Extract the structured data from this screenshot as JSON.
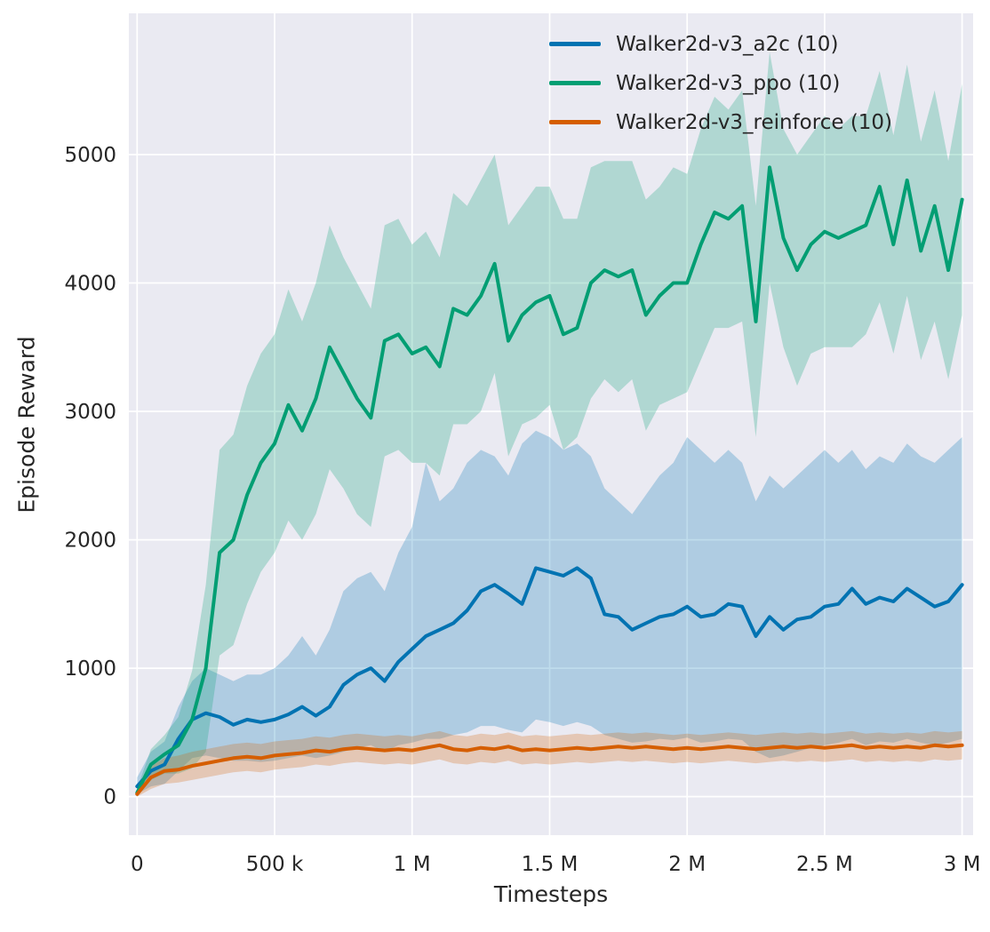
{
  "chart_data": {
    "type": "line",
    "title": "",
    "xlabel": "Timesteps",
    "ylabel": "Episode Reward",
    "x_unit": "timesteps_thousands",
    "grid": true,
    "legend_position": "upper right inside",
    "plot_bg": "#eaeaf2",
    "grid_color": "#ffffff",
    "text_color": "#262626",
    "band_opacity": 0.25,
    "xlim": [
      -30,
      3040
    ],
    "ylim": [
      -300,
      6100
    ],
    "xticks": [
      {
        "v": 0,
        "label": "0"
      },
      {
        "v": 500,
        "label": "500 k"
      },
      {
        "v": 1000,
        "label": "1 M"
      },
      {
        "v": 1500,
        "label": "1.5 M"
      },
      {
        "v": 2000,
        "label": "2 M"
      },
      {
        "v": 2500,
        "label": "2.5 M"
      },
      {
        "v": 3000,
        "label": "3 M"
      }
    ],
    "yticks": [
      {
        "v": 0,
        "label": "0"
      },
      {
        "v": 1000,
        "label": "1000"
      },
      {
        "v": 2000,
        "label": "2000"
      },
      {
        "v": 3000,
        "label": "3000"
      },
      {
        "v": 4000,
        "label": "4000"
      },
      {
        "v": 5000,
        "label": "5000"
      }
    ],
    "x": [
      0,
      50,
      100,
      150,
      200,
      250,
      300,
      350,
      400,
      450,
      500,
      550,
      600,
      650,
      700,
      750,
      800,
      850,
      900,
      950,
      1000,
      1050,
      1100,
      1150,
      1200,
      1250,
      1300,
      1350,
      1400,
      1450,
      1500,
      1550,
      1600,
      1650,
      1700,
      1750,
      1800,
      1850,
      1900,
      1950,
      2000,
      2050,
      2100,
      2150,
      2200,
      2250,
      2300,
      2350,
      2400,
      2450,
      2500,
      2550,
      2600,
      2650,
      2700,
      2750,
      2800,
      2850,
      2900,
      2950,
      3000
    ],
    "series": [
      {
        "name": "Walker2d-v3_a2c (10)",
        "color": "#0173b2",
        "mean": [
          80,
          200,
          250,
          450,
          600,
          650,
          620,
          560,
          600,
          580,
          600,
          640,
          700,
          630,
          700,
          870,
          950,
          1000,
          900,
          1050,
          1150,
          1250,
          1300,
          1350,
          1450,
          1600,
          1650,
          1580,
          1500,
          1780,
          1750,
          1720,
          1780,
          1700,
          1420,
          1400,
          1300,
          1350,
          1400,
          1420,
          1480,
          1400,
          1420,
          1500,
          1480,
          1250,
          1400,
          1300,
          1380,
          1400,
          1480,
          1500,
          1620,
          1500,
          1550,
          1520,
          1620,
          1550,
          1480,
          1520,
          1650
        ],
        "band_lower": [
          20,
          80,
          100,
          200,
          300,
          320,
          300,
          280,
          280,
          270,
          280,
          300,
          320,
          300,
          320,
          350,
          380,
          400,
          350,
          400,
          420,
          450,
          450,
          480,
          500,
          550,
          550,
          520,
          500,
          600,
          580,
          550,
          580,
          550,
          480,
          450,
          420,
          430,
          450,
          440,
          460,
          420,
          430,
          450,
          440,
          350,
          300,
          320,
          350,
          380,
          400,
          420,
          450,
          400,
          430,
          420,
          450,
          420,
          400,
          420,
          450
        ],
        "band_upper": [
          150,
          350,
          430,
          700,
          900,
          1000,
          950,
          900,
          950,
          950,
          1000,
          1100,
          1250,
          1100,
          1300,
          1600,
          1700,
          1750,
          1600,
          1900,
          2100,
          2600,
          2300,
          2400,
          2600,
          2700,
          2650,
          2500,
          2750,
          2850,
          2800,
          2700,
          2750,
          2650,
          2400,
          2300,
          2200,
          2350,
          2500,
          2600,
          2800,
          2700,
          2600,
          2700,
          2600,
          2300,
          2500,
          2400,
          2500,
          2600,
          2700,
          2600,
          2700,
          2550,
          2650,
          2600,
          2750,
          2650,
          2600,
          2700,
          2800
        ]
      },
      {
        "name": "Walker2d-v3_ppo (10)",
        "color": "#029e73",
        "mean": [
          30,
          250,
          330,
          400,
          600,
          1000,
          1900,
          2000,
          2350,
          2600,
          2750,
          3050,
          2850,
          3100,
          3500,
          3300,
          3100,
          2950,
          3550,
          3600,
          3450,
          3500,
          3350,
          3800,
          3750,
          3900,
          4150,
          3550,
          3750,
          3850,
          3900,
          3600,
          3650,
          4000,
          4100,
          4050,
          4100,
          3750,
          3900,
          4000,
          4000,
          4300,
          4550,
          4500,
          4600,
          3700,
          4900,
          4350,
          4100,
          4300,
          4400,
          4350,
          4400,
          4450,
          4750,
          4300,
          4800,
          4250,
          4600,
          4100,
          4650
        ],
        "band_lower": [
          0,
          130,
          180,
          180,
          220,
          350,
          1100,
          1180,
          1500,
          1750,
          1900,
          2150,
          2000,
          2200,
          2550,
          2400,
          2200,
          2100,
          2650,
          2700,
          2600,
          2600,
          2500,
          2900,
          2900,
          3000,
          3300,
          2650,
          2900,
          2950,
          3050,
          2700,
          2800,
          3100,
          3250,
          3150,
          3250,
          2850,
          3050,
          3100,
          3150,
          3400,
          3650,
          3650,
          3700,
          2800,
          4000,
          3500,
          3200,
          3450,
          3500,
          3500,
          3500,
          3600,
          3850,
          3450,
          3900,
          3400,
          3700,
          3250,
          3750
        ],
        "band_upper": [
          60,
          370,
          480,
          620,
          980,
          1650,
          2700,
          2820,
          3200,
          3450,
          3600,
          3950,
          3700,
          4000,
          4450,
          4200,
          4000,
          3800,
          4450,
          4500,
          4300,
          4400,
          4200,
          4700,
          4600,
          4800,
          5000,
          4450,
          4600,
          4750,
          4750,
          4500,
          4500,
          4900,
          4950,
          4950,
          4950,
          4650,
          4750,
          4900,
          4850,
          5200,
          5450,
          5350,
          5500,
          4600,
          5800,
          5200,
          5000,
          5150,
          5300,
          5200,
          5300,
          5300,
          5650,
          5150,
          5700,
          5100,
          5500,
          4950,
          5550
        ]
      },
      {
        "name": "Walker2d-v3_reinforce (10)",
        "color": "#d55e00",
        "mean": [
          20,
          150,
          200,
          210,
          240,
          260,
          280,
          300,
          310,
          300,
          320,
          330,
          340,
          360,
          350,
          370,
          380,
          370,
          360,
          370,
          360,
          380,
          400,
          370,
          360,
          380,
          370,
          390,
          360,
          370,
          360,
          370,
          380,
          370,
          380,
          390,
          380,
          390,
          380,
          370,
          380,
          370,
          380,
          390,
          380,
          370,
          380,
          390,
          380,
          390,
          380,
          390,
          400,
          380,
          390,
          380,
          390,
          380,
          400,
          390,
          400
        ],
        "band_lower": [
          0,
          60,
          100,
          110,
          130,
          150,
          170,
          190,
          200,
          190,
          210,
          220,
          230,
          250,
          240,
          260,
          270,
          260,
          250,
          260,
          250,
          270,
          290,
          260,
          250,
          270,
          260,
          280,
          250,
          260,
          250,
          260,
          270,
          260,
          270,
          280,
          270,
          280,
          270,
          260,
          270,
          260,
          270,
          280,
          270,
          260,
          270,
          280,
          270,
          280,
          270,
          280,
          290,
          270,
          280,
          270,
          280,
          270,
          290,
          280,
          290
        ],
        "band_upper": [
          60,
          240,
          300,
          320,
          350,
          370,
          390,
          410,
          420,
          410,
          430,
          440,
          450,
          470,
          460,
          480,
          490,
          480,
          470,
          480,
          470,
          490,
          510,
          480,
          470,
          490,
          480,
          500,
          470,
          480,
          470,
          480,
          490,
          480,
          490,
          500,
          490,
          500,
          490,
          480,
          490,
          480,
          490,
          500,
          490,
          480,
          490,
          500,
          490,
          500,
          490,
          500,
          510,
          490,
          500,
          490,
          500,
          490,
          510,
          500,
          510
        ]
      }
    ]
  }
}
